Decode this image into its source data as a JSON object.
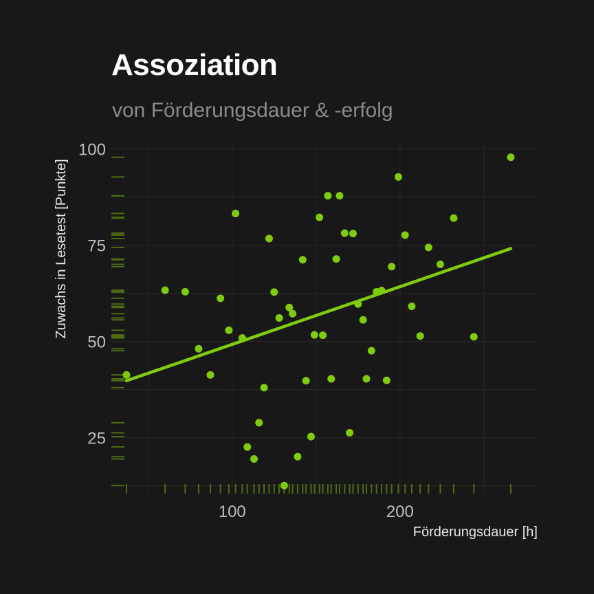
{
  "colors": {
    "background": "#181818",
    "grid": "#2a2a2a",
    "accent": "#7fcc0e",
    "rug": "#4d6b10",
    "title": "#ffffff",
    "subtitle": "#8a8a8a",
    "tick_text": "#bdbdbd"
  },
  "chart_data": {
    "type": "scatter",
    "title": "Assoziation",
    "subtitle": "von Förderungsdauer & -erfolg",
    "xlabel": "Förderungsdauer [h]",
    "ylabel": "Zuwachs in Lesetest [Punkte]",
    "xlim": [
      28,
      282
    ],
    "ylim": [
      10.5,
      101.5
    ],
    "xticks": [
      100,
      200
    ],
    "yticks": [
      25,
      50,
      75,
      100
    ],
    "grid": true,
    "rug": "left-and-bottom",
    "points": [
      {
        "x": 37,
        "y": 41.3
      },
      {
        "x": 60,
        "y": 63.3
      },
      {
        "x": 72,
        "y": 62.9
      },
      {
        "x": 80,
        "y": 48.1
      },
      {
        "x": 87,
        "y": 41.3
      },
      {
        "x": 93,
        "y": 61.2
      },
      {
        "x": 98,
        "y": 52.9
      },
      {
        "x": 102,
        "y": 83.2
      },
      {
        "x": 106,
        "y": 50.9
      },
      {
        "x": 109,
        "y": 22.6
      },
      {
        "x": 113,
        "y": 19.5
      },
      {
        "x": 116,
        "y": 28.9
      },
      {
        "x": 119,
        "y": 38.0
      },
      {
        "x": 122,
        "y": 76.7
      },
      {
        "x": 125,
        "y": 62.8
      },
      {
        "x": 128,
        "y": 56.1
      },
      {
        "x": 131,
        "y": 12.6
      },
      {
        "x": 134,
        "y": 58.8
      },
      {
        "x": 136,
        "y": 57.2
      },
      {
        "x": 139,
        "y": 20.1
      },
      {
        "x": 142,
        "y": 71.2
      },
      {
        "x": 144,
        "y": 39.8
      },
      {
        "x": 147,
        "y": 25.3
      },
      {
        "x": 149,
        "y": 51.7
      },
      {
        "x": 152,
        "y": 82.2
      },
      {
        "x": 154,
        "y": 51.6
      },
      {
        "x": 157,
        "y": 87.8
      },
      {
        "x": 159,
        "y": 40.3
      },
      {
        "x": 162,
        "y": 71.4
      },
      {
        "x": 164,
        "y": 87.8
      },
      {
        "x": 167,
        "y": 78.1
      },
      {
        "x": 170,
        "y": 26.3
      },
      {
        "x": 172,
        "y": 78.0
      },
      {
        "x": 175,
        "y": 59.7
      },
      {
        "x": 178,
        "y": 55.6
      },
      {
        "x": 180,
        "y": 40.3
      },
      {
        "x": 183,
        "y": 47.6
      },
      {
        "x": 186,
        "y": 62.9
      },
      {
        "x": 189,
        "y": 63.2
      },
      {
        "x": 192,
        "y": 39.9
      },
      {
        "x": 195,
        "y": 69.4
      },
      {
        "x": 199,
        "y": 92.7
      },
      {
        "x": 203,
        "y": 77.6
      },
      {
        "x": 207,
        "y": 59.1
      },
      {
        "x": 212,
        "y": 51.4
      },
      {
        "x": 217,
        "y": 74.4
      },
      {
        "x": 224,
        "y": 70.0
      },
      {
        "x": 232,
        "y": 82.0
      },
      {
        "x": 244,
        "y": 51.2
      },
      {
        "x": 266,
        "y": 97.8
      }
    ],
    "trend_line": {
      "x": [
        37,
        266
      ],
      "y": [
        39.8,
        74.1
      ]
    }
  }
}
